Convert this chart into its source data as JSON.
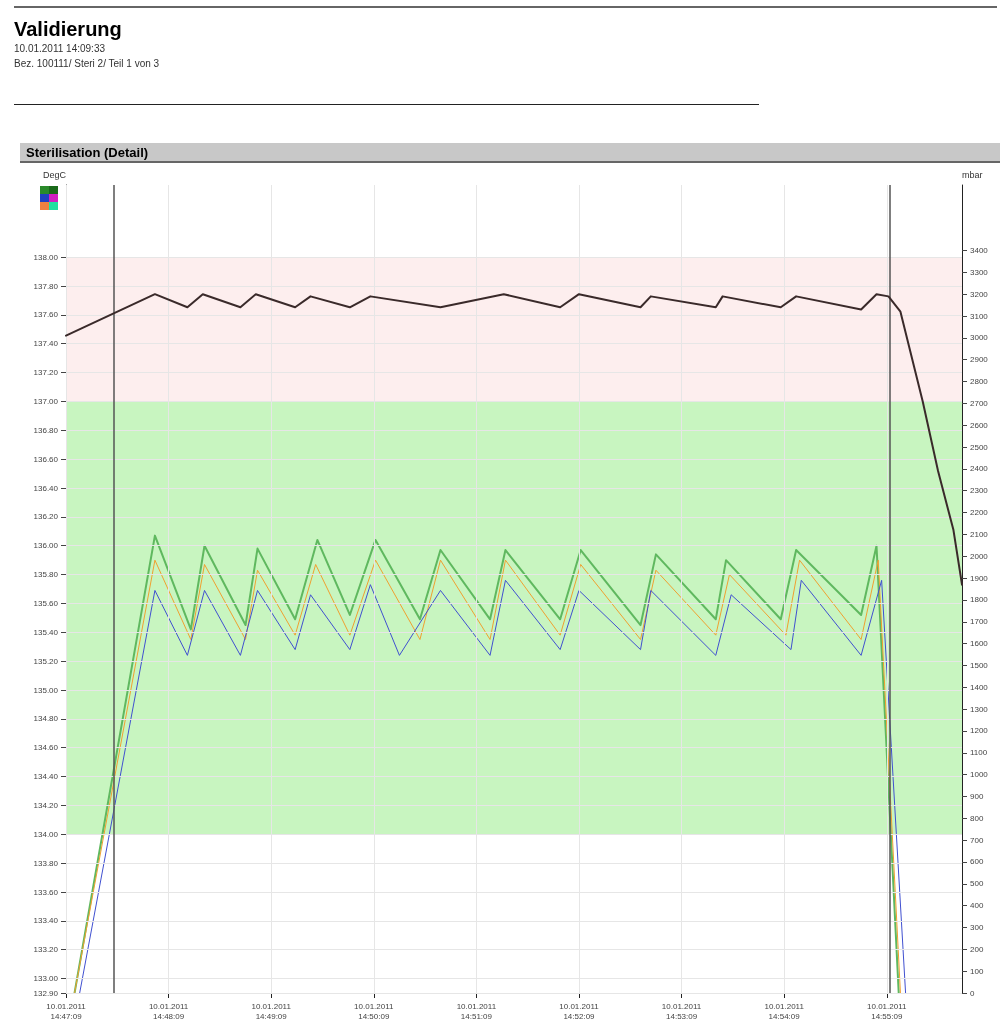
{
  "chart_data": {
    "type": "line",
    "title": "Validierung",
    "subtitle": "10.01.2011  14:09:33",
    "annotations": [
      "Bez.    100111/ Steri 2/ Teil 1 von 3",
      "Sterilisation (Detail)"
    ],
    "ylabel": "DegC",
    "y2label": "mbar",
    "xlim": [
      "2011-01-10T14:47:09",
      "2011-01-10T14:55:53"
    ],
    "xticks": [
      {
        "value": "2011-01-10T14:47:09",
        "label": "10.01.2011\n14:47:09"
      },
      {
        "value": "2011-01-10T14:48:09",
        "label": "10.01.2011\n14:48:09"
      },
      {
        "value": "2011-01-10T14:49:09",
        "label": "10.01.2011\n14:49:09"
      },
      {
        "value": "2011-01-10T14:50:09",
        "label": "10.01.2011\n14:50:09"
      },
      {
        "value": "2011-01-10T14:51:09",
        "label": "10.01.2011\n14:51:09"
      },
      {
        "value": "2011-01-10T14:52:09",
        "label": "10.01.2011\n14:52:09"
      },
      {
        "value": "2011-01-10T14:53:09",
        "label": "10.01.2011\n14:53:09"
      },
      {
        "value": "2011-01-10T14:54:09",
        "label": "10.01.2011\n14:54:09"
      },
      {
        "value": "2011-01-10T14:55:09",
        "label": "10.01.2011\n14:55:09"
      }
    ],
    "ylim": [
      132.9,
      138.5
    ],
    "yticks": [
      {
        "value": 132.9,
        "label": "132.90"
      },
      {
        "value": 133,
        "label": "133.00"
      },
      {
        "value": 133.2,
        "label": "133.20"
      },
      {
        "value": 133.4,
        "label": "133.40"
      },
      {
        "value": 133.6,
        "label": "133.60"
      },
      {
        "value": 133.8,
        "label": "133.80"
      },
      {
        "value": 134,
        "label": "134.00"
      },
      {
        "value": 134.2,
        "label": "134.20"
      },
      {
        "value": 134.4,
        "label": "134.40"
      },
      {
        "value": 134.6,
        "label": "134.60"
      },
      {
        "value": 134.8,
        "label": "134.80"
      },
      {
        "value": 135,
        "label": "135.00"
      },
      {
        "value": 135.2,
        "label": "135.20"
      },
      {
        "value": 135.4,
        "label": "135.40"
      },
      {
        "value": 135.6,
        "label": "135.60"
      },
      {
        "value": 135.8,
        "label": "135.80"
      },
      {
        "value": 136,
        "label": "136.00"
      },
      {
        "value": 136.2,
        "label": "136.20"
      },
      {
        "value": 136.4,
        "label": "136.40"
      },
      {
        "value": 136.6,
        "label": "136.60"
      },
      {
        "value": 136.8,
        "label": "136.80"
      },
      {
        "value": 137,
        "label": "137.00"
      },
      {
        "value": 137.2,
        "label": "137.20"
      },
      {
        "value": 137.4,
        "label": "137.40"
      },
      {
        "value": 137.6,
        "label": "137.60"
      },
      {
        "value": 137.8,
        "label": "137.80"
      },
      {
        "value": 138,
        "label": "138.00"
      }
    ],
    "y2lim": [
      0,
      3700
    ],
    "y2ticks": [
      0,
      100,
      200,
      300,
      400,
      500,
      600,
      700,
      800,
      900,
      1000,
      1100,
      1200,
      1300,
      1400,
      1500,
      1600,
      1700,
      1800,
      1900,
      2000,
      2100,
      2200,
      2300,
      2400,
      2500,
      2600,
      2700,
      2800,
      2900,
      3000,
      3100,
      3200,
      3300,
      3400
    ],
    "grid": true,
    "marker": "none",
    "line_style": "solid",
    "bands": [
      {
        "axis": "y",
        "from": 134.0,
        "to": 137.0,
        "color": "#c8f5c0"
      },
      {
        "axis": "y",
        "from": 137.0,
        "to": 138.0,
        "color": "#fdeeee"
      }
    ],
    "ref_lines": [
      {
        "axis": "x",
        "value": "2011-01-10T14:47:37",
        "color": "#555555"
      },
      {
        "axis": "x",
        "value": "2011-01-10T14:55:11",
        "color": "#555555"
      }
    ],
    "series": [
      {
        "color": "#3a2a2a",
        "axis": "y2",
        "x": [
          "2011-01-10T14:47:09",
          "2011-01-10T14:48:01",
          "2011-01-10T14:48:20",
          "2011-01-10T14:48:29",
          "2011-01-10T14:48:51",
          "2011-01-10T14:49:00",
          "2011-01-10T14:49:23",
          "2011-01-10T14:49:32",
          "2011-01-10T14:49:55",
          "2011-01-10T14:50:07",
          "2011-01-10T14:50:48",
          "2011-01-10T14:51:25",
          "2011-01-10T14:51:58",
          "2011-01-10T14:52:09",
          "2011-01-10T14:52:45",
          "2011-01-10T14:52:51",
          "2011-01-10T14:53:29",
          "2011-01-10T14:53:33",
          "2011-01-10T14:54:07",
          "2011-01-10T14:54:16",
          "2011-01-10T14:54:54",
          "2011-01-10T14:55:03",
          "2011-01-10T14:55:10",
          "2011-01-10T14:55:17",
          "2011-01-10T14:55:30",
          "2011-01-10T14:55:39",
          "2011-01-10T14:55:48",
          "2011-01-10T14:55:53"
        ],
        "values": [
          3010,
          3200,
          3140,
          3200,
          3140,
          3200,
          3140,
          3190,
          3140,
          3190,
          3140,
          3200,
          3140,
          3200,
          3140,
          3190,
          3140,
          3190,
          3140,
          3190,
          3130,
          3200,
          3190,
          3120,
          2710,
          2390,
          2120,
          1870
        ]
      },
      {
        "color": "#5fb85f",
        "x": [
          "2011-01-10T14:47:14",
          "2011-01-10T14:48:01",
          "2011-01-10T14:48:22",
          "2011-01-10T14:48:30",
          "2011-01-10T14:48:54",
          "2011-01-10T14:49:01",
          "2011-01-10T14:49:23",
          "2011-01-10T14:49:36",
          "2011-01-10T14:49:55",
          "2011-01-10T14:50:10",
          "2011-01-10T14:50:36",
          "2011-01-10T14:50:48",
          "2011-01-10T14:51:17",
          "2011-01-10T14:51:26",
          "2011-01-10T14:51:58",
          "2011-01-10T14:52:10",
          "2011-01-10T14:52:45",
          "2011-01-10T14:52:54",
          "2011-01-10T14:53:29",
          "2011-01-10T14:53:35",
          "2011-01-10T14:54:07",
          "2011-01-10T14:54:16",
          "2011-01-10T14:54:54",
          "2011-01-10T14:55:03",
          "2011-01-10T14:55:16"
        ],
        "values": [
          132.9,
          136.07,
          135.42,
          136.0,
          135.45,
          135.98,
          135.49,
          136.04,
          135.52,
          136.04,
          135.49,
          135.97,
          135.49,
          135.97,
          135.49,
          135.97,
          135.45,
          135.94,
          135.49,
          135.9,
          135.49,
          135.97,
          135.52,
          136.0,
          132.9
        ]
      },
      {
        "color": "#f0a030",
        "x": [
          "2011-01-10T14:47:14",
          "2011-01-10T14:48:01",
          "2011-01-10T14:48:22",
          "2011-01-10T14:48:30",
          "2011-01-10T14:48:54",
          "2011-01-10T14:49:01",
          "2011-01-10T14:49:23",
          "2011-01-10T14:49:35",
          "2011-01-10T14:49:55",
          "2011-01-10T14:50:10",
          "2011-01-10T14:50:36",
          "2011-01-10T14:50:48",
          "2011-01-10T14:51:17",
          "2011-01-10T14:51:26",
          "2011-01-10T14:51:58",
          "2011-01-10T14:52:10",
          "2011-01-10T14:52:45",
          "2011-01-10T14:52:54",
          "2011-01-10T14:53:29",
          "2011-01-10T14:53:37",
          "2011-01-10T14:54:10",
          "2011-01-10T14:54:18",
          "2011-01-10T14:54:54",
          "2011-01-10T14:55:04",
          "2011-01-10T14:55:17"
        ],
        "values": [
          132.9,
          135.9,
          135.35,
          135.87,
          135.35,
          135.83,
          135.38,
          135.87,
          135.38,
          135.9,
          135.35,
          135.9,
          135.35,
          135.9,
          135.38,
          135.87,
          135.35,
          135.83,
          135.38,
          135.8,
          135.38,
          135.9,
          135.35,
          135.9,
          132.9
        ]
      },
      {
        "color": "#4050d0",
        "x": [
          "2011-01-10T14:47:17",
          "2011-01-10T14:48:01",
          "2011-01-10T14:48:20",
          "2011-01-10T14:48:30",
          "2011-01-10T14:48:51",
          "2011-01-10T14:49:01",
          "2011-01-10T14:49:23",
          "2011-01-10T14:49:32",
          "2011-01-10T14:49:55",
          "2011-01-10T14:50:07",
          "2011-01-10T14:50:24",
          "2011-01-10T14:50:48",
          "2011-01-10T14:51:17",
          "2011-01-10T14:51:26",
          "2011-01-10T14:51:58",
          "2011-01-10T14:52:09",
          "2011-01-10T14:52:45",
          "2011-01-10T14:52:51",
          "2011-01-10T14:53:29",
          "2011-01-10T14:53:38",
          "2011-01-10T14:54:13",
          "2011-01-10T14:54:19",
          "2011-01-10T14:54:54",
          "2011-01-10T14:55:06",
          "2011-01-10T14:55:20"
        ],
        "values": [
          132.9,
          135.69,
          135.24,
          135.69,
          135.24,
          135.69,
          135.28,
          135.66,
          135.28,
          135.73,
          135.24,
          135.69,
          135.24,
          135.76,
          135.28,
          135.69,
          135.28,
          135.69,
          135.24,
          135.66,
          135.28,
          135.76,
          135.24,
          135.76,
          132.9
        ]
      }
    ]
  }
}
